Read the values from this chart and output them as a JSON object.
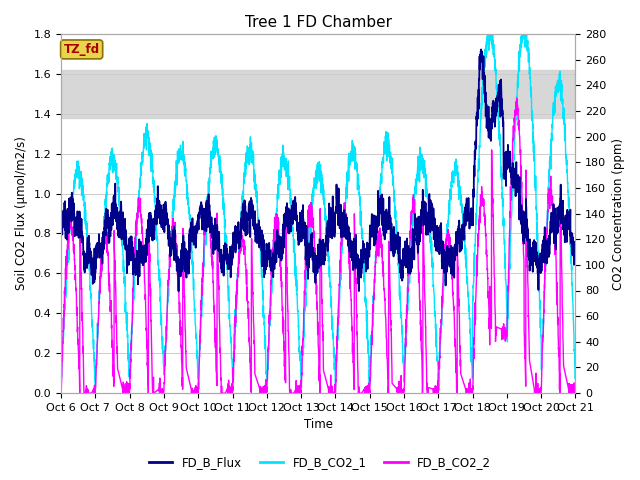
{
  "title": "Tree 1 FD Chamber",
  "xlabel": "Time",
  "ylabel_left": "Soil CO2 Flux (μmol/m2/s)",
  "ylabel_right": "CO2 Concentration (ppm)",
  "ylim_left": [
    0,
    1.8
  ],
  "ylim_right": [
    0,
    280
  ],
  "xlim_days": [
    0,
    15
  ],
  "shade_ymin": 1.38,
  "shade_ymax": 1.62,
  "xtick_labels": [
    "Oct 6",
    "Oct 7",
    "Oct 8",
    "Oct 9",
    "Oct 10",
    "Oct 11",
    "Oct 12",
    "Oct 13",
    "Oct 14",
    "Oct 15",
    "Oct 16",
    "Oct 17",
    "Oct 18",
    "Oct 19",
    "Oct 20",
    "Oct 21"
  ],
  "color_flux": "#00008B",
  "color_co2_1": "#00E5FF",
  "color_co2_2": "#FF00FF",
  "legend_labels": [
    "FD_B_Flux",
    "FD_B_CO2_1",
    "FD_B_CO2_2"
  ],
  "tz_label": "TZ_fd",
  "tz_bg": "#E8D44D",
  "tz_fc": "#AA0000",
  "bg_color": "#FFFFFF",
  "grid_color": "#CCCCCC",
  "title_fontsize": 11,
  "label_fontsize": 8.5,
  "tick_fontsize": 8,
  "linewidth": 1.0
}
